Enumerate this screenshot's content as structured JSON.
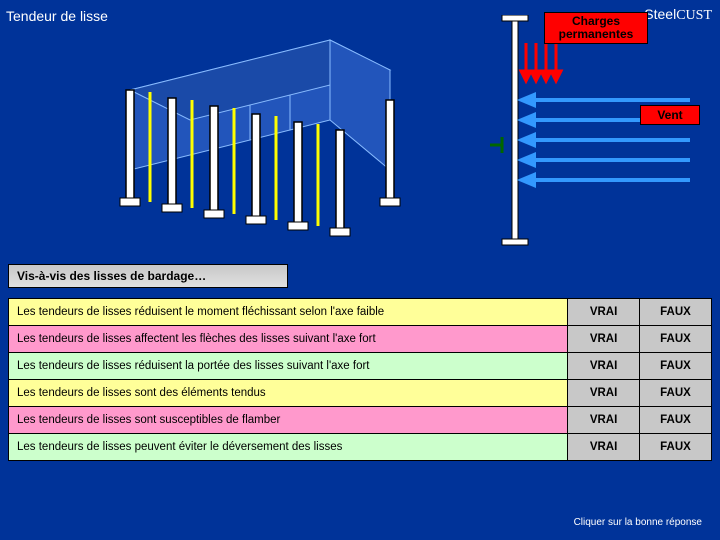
{
  "title": "Tendeur de lisse",
  "brand_a": "Steel",
  "brand_b": "CUST",
  "labels": {
    "charges": "Charges\npermanentes",
    "vent": "Vent"
  },
  "section_header": "Vis-à-vis des lisses de bardage…",
  "questions": [
    {
      "text": "Les tendeurs de lisses réduisent le moment fléchissant selon l'axe faible",
      "vrai": "VRAI",
      "faux": "FAUX"
    },
    {
      "text": "Les tendeurs de lisses affectent les flèches des lisses suivant l'axe fort",
      "vrai": "VRAI",
      "faux": "FAUX"
    },
    {
      "text": "Les tendeurs de lisses réduisent la portée des lisses suivant l'axe fort",
      "vrai": "VRAI",
      "faux": "FAUX"
    },
    {
      "text": "Les tendeurs de lisses sont des éléments tendus",
      "vrai": "VRAI",
      "faux": "FAUX"
    },
    {
      "text": "Les tendeurs de lisses sont susceptibles de flamber",
      "vrai": "VRAI",
      "faux": "FAUX"
    },
    {
      "text": "Les tendeurs de lisses peuvent éviter le déversement des lisses",
      "vrai": "VRAI",
      "faux": "FAUX"
    }
  ],
  "footer": "Cliquer sur la bonne réponse",
  "colors": {
    "bg": "#003399",
    "red": "#ff0000",
    "yellow": "#ffff00",
    "wire": "#0066cc",
    "wire_light": "#3399ff"
  }
}
